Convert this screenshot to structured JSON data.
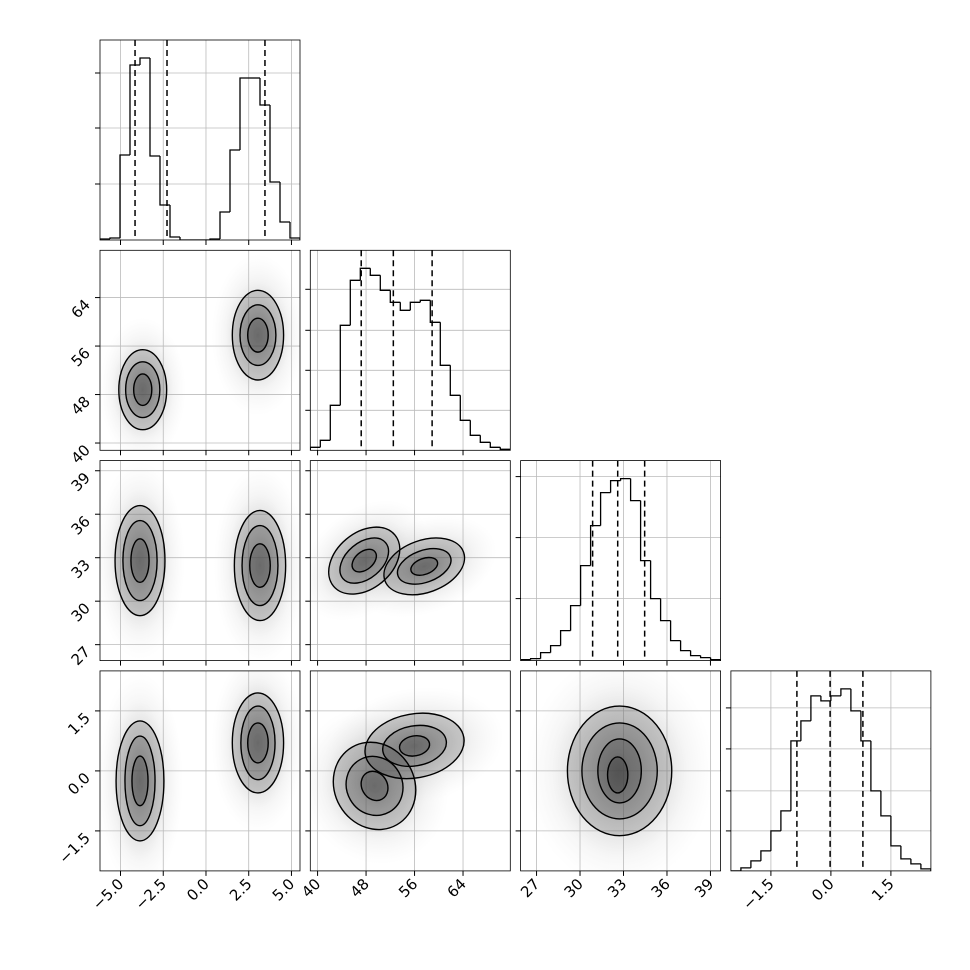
{
  "chart_data": {
    "type": "corner",
    "params": [
      {
        "lim": [
          -6.2,
          5.5
        ],
        "ticks": [
          {
            "value": -5,
            "label": "−5.0"
          },
          {
            "value": -2.5,
            "label": "−2.5"
          },
          {
            "value": 0,
            "label": "0.0"
          },
          {
            "value": 2.5,
            "label": "2.5"
          },
          {
            "value": 5,
            "label": "5.0"
          }
        ]
      },
      {
        "lim": [
          38.8,
          71.8
        ],
        "ticks": [
          40,
          48,
          56,
          64
        ]
      },
      {
        "lim": [
          25.9,
          39.7
        ],
        "ticks": [
          27,
          30,
          33,
          36,
          39
        ]
      },
      {
        "lim": [
          -2.5,
          2.5
        ],
        "ticks": [
          {
            "value": -1.5,
            "label": "−1.5"
          },
          {
            "value": 0,
            "label": "0.0"
          },
          {
            "value": 1.5,
            "label": "1.5"
          }
        ]
      }
    ],
    "histograms": [
      {
        "bins": [
          -6.2,
          -5.615,
          -5.03,
          -4.445,
          -3.86,
          -3.275,
          -2.69,
          -2.105,
          -1.52,
          -0.935,
          -0.35,
          0.235,
          0.82,
          1.405,
          1.99,
          2.575,
          3.16,
          3.745,
          4.33,
          4.915,
          5.5
        ],
        "counts": [
          1,
          2,
          85,
          175,
          182,
          84,
          35,
          3,
          0,
          0,
          0,
          1,
          28,
          90,
          162,
          162,
          135,
          58,
          18,
          2
        ],
        "quantiles": [
          -4.15,
          -2.28,
          3.45
        ],
        "ylim": [
          0,
          200
        ],
        "yticks": [
          56,
          112,
          167
        ]
      },
      {
        "bins": [
          38.8,
          40.45,
          42.1,
          43.75,
          45.4,
          47.05,
          48.7,
          50.35,
          52,
          53.65,
          55.3,
          56.95,
          58.6,
          60.25,
          61.9,
          63.55,
          65.2,
          66.85,
          68.5,
          70.15,
          71.8
        ],
        "counts": [
          3,
          10,
          45,
          125,
          170,
          182,
          175,
          160,
          148,
          140,
          148,
          150,
          128,
          85,
          55,
          30,
          15,
          8,
          3,
          1
        ],
        "quantiles": [
          47.2,
          52.5,
          58.9
        ],
        "ylim": [
          0,
          200
        ],
        "yticks": [
          40,
          80,
          120,
          161
        ]
      },
      {
        "bins": [
          25.9,
          26.59,
          27.28,
          27.97,
          28.66,
          29.35,
          30.04,
          30.73,
          31.42,
          32.11,
          32.8,
          33.49,
          34.18,
          34.87,
          35.56,
          36.25,
          36.94,
          37.63,
          38.32,
          39.01,
          39.7
        ],
        "counts": [
          1,
          2,
          8,
          15,
          30,
          55,
          95,
          135,
          168,
          180,
          182,
          160,
          100,
          62,
          40,
          20,
          10,
          5,
          3,
          1
        ],
        "quantiles": [
          30.87,
          32.6,
          34.46
        ],
        "ylim": [
          0,
          200
        ],
        "yticks": [
          62,
          123,
          184
        ]
      },
      {
        "bins": [
          -2.5,
          -2.25,
          -2,
          -1.75,
          -1.5,
          -1.25,
          -1,
          -0.75,
          -0.5,
          -0.25,
          0,
          0.25,
          0.5,
          0.75,
          1,
          1.25,
          1.5,
          1.75,
          2,
          2.25,
          2.5
        ],
        "counts": [
          0,
          3,
          10,
          20,
          40,
          60,
          130,
          150,
          175,
          170,
          175,
          182,
          160,
          130,
          80,
          55,
          25,
          12,
          7,
          2
        ],
        "quantiles": [
          -0.85,
          -0.02,
          0.8
        ],
        "ylim": [
          0,
          200
        ],
        "yticks": [
          40,
          80,
          122,
          163
        ]
      }
    ],
    "pairs": [
      {
        "x": 0,
        "y": 1,
        "contours": [
          {
            "cx": -3.7,
            "cy": 48.8,
            "rx": 1.4,
            "ry": 6.6,
            "angle": 0
          },
          {
            "cx": -3.7,
            "cy": 48.8,
            "rx": 1.0,
            "ry": 4.6,
            "angle": 0
          },
          {
            "cx": -3.7,
            "cy": 48.8,
            "rx": 0.53,
            "ry": 2.6,
            "angle": 0
          },
          {
            "cx": 3.04,
            "cy": 57.8,
            "rx": 1.5,
            "ry": 7.4,
            "angle": 0
          },
          {
            "cx": 3.04,
            "cy": 57.8,
            "rx": 1.05,
            "ry": 5.0,
            "angle": 0
          },
          {
            "cx": 3.04,
            "cy": 57.8,
            "rx": 0.6,
            "ry": 2.8,
            "angle": 0
          }
        ]
      },
      {
        "x": 0,
        "y": 2,
        "contours": [
          {
            "cx": -3.86,
            "cy": 32.8,
            "rx": 1.46,
            "ry": 3.8,
            "angle": 0
          },
          {
            "cx": -3.86,
            "cy": 32.8,
            "rx": 1.0,
            "ry": 2.76,
            "angle": 0
          },
          {
            "cx": -3.86,
            "cy": 32.8,
            "rx": 0.53,
            "ry": 1.5,
            "angle": 0
          },
          {
            "cx": 3.16,
            "cy": 32.46,
            "rx": 1.5,
            "ry": 3.8,
            "angle": 0
          },
          {
            "cx": 3.16,
            "cy": 32.46,
            "rx": 1.05,
            "ry": 2.76,
            "angle": 0
          },
          {
            "cx": 3.16,
            "cy": 32.46,
            "rx": 0.6,
            "ry": 1.5,
            "angle": 0
          }
        ]
      },
      {
        "x": 0,
        "y": 3,
        "contours": [
          {
            "cx": -3.86,
            "cy": -0.25,
            "rx": 1.4,
            "ry": 1.5,
            "angle": 0
          },
          {
            "cx": -3.86,
            "cy": -0.25,
            "rx": 0.88,
            "ry": 1.12,
            "angle": 0
          },
          {
            "cx": -3.86,
            "cy": -0.25,
            "rx": 0.47,
            "ry": 0.62,
            "angle": 0
          },
          {
            "cx": 3.04,
            "cy": 0.7,
            "rx": 1.5,
            "ry": 1.25,
            "angle": 0
          },
          {
            "cx": 3.04,
            "cy": 0.7,
            "rx": 1.0,
            "ry": 0.92,
            "angle": 0
          },
          {
            "cx": 3.04,
            "cy": 0.7,
            "rx": 0.6,
            "ry": 0.5,
            "angle": 0
          }
        ]
      },
      {
        "x": 1,
        "y": 2,
        "contours": [
          {
            "cx": 47.7,
            "cy": 32.8,
            "rx": 6.6,
            "ry": 1.93,
            "angle": -40
          },
          {
            "cx": 47.7,
            "cy": 32.8,
            "rx": 4.6,
            "ry": 1.24,
            "angle": -40
          },
          {
            "cx": 47.7,
            "cy": 32.8,
            "rx": 2.3,
            "ry": 0.62,
            "angle": -40
          },
          {
            "cx": 57.6,
            "cy": 32.4,
            "rx": 6.9,
            "ry": 1.8,
            "angle": -20
          },
          {
            "cx": 57.6,
            "cy": 32.4,
            "rx": 4.6,
            "ry": 1.1,
            "angle": -20
          },
          {
            "cx": 57.6,
            "cy": 32.4,
            "rx": 2.3,
            "ry": 0.55,
            "angle": -20
          }
        ]
      },
      {
        "x": 1,
        "y": 3,
        "contours": [
          {
            "cx": 49.4,
            "cy": -0.375,
            "rx": 6.6,
            "ry": 1.12,
            "angle": -30
          },
          {
            "cx": 49.4,
            "cy": -0.375,
            "rx": 4.6,
            "ry": 0.75,
            "angle": -30
          },
          {
            "cx": 49.4,
            "cy": -0.375,
            "rx": 2.1,
            "ry": 0.38,
            "angle": -30
          },
          {
            "cx": 56,
            "cy": 0.625,
            "rx": 8.25,
            "ry": 0.8,
            "angle": -10
          },
          {
            "cx": 56,
            "cy": 0.625,
            "rx": 5.3,
            "ry": 0.5,
            "angle": -10
          },
          {
            "cx": 56,
            "cy": 0.625,
            "rx": 2.5,
            "ry": 0.25,
            "angle": -10
          }
        ]
      },
      {
        "x": 2,
        "y": 3,
        "contours": [
          {
            "cx": 32.73,
            "cy": 0,
            "rx": 3.6,
            "ry": 1.62,
            "angle": 0
          },
          {
            "cx": 32.73,
            "cy": 0,
            "rx": 2.6,
            "ry": 1.2,
            "angle": 0
          },
          {
            "cx": 32.73,
            "cy": 0,
            "rx": 1.5,
            "ry": 0.8,
            "angle": 0
          },
          {
            "cx": 32.6,
            "cy": -0.1,
            "rx": 0.7,
            "ry": 0.45,
            "angle": 0
          }
        ]
      }
    ]
  }
}
